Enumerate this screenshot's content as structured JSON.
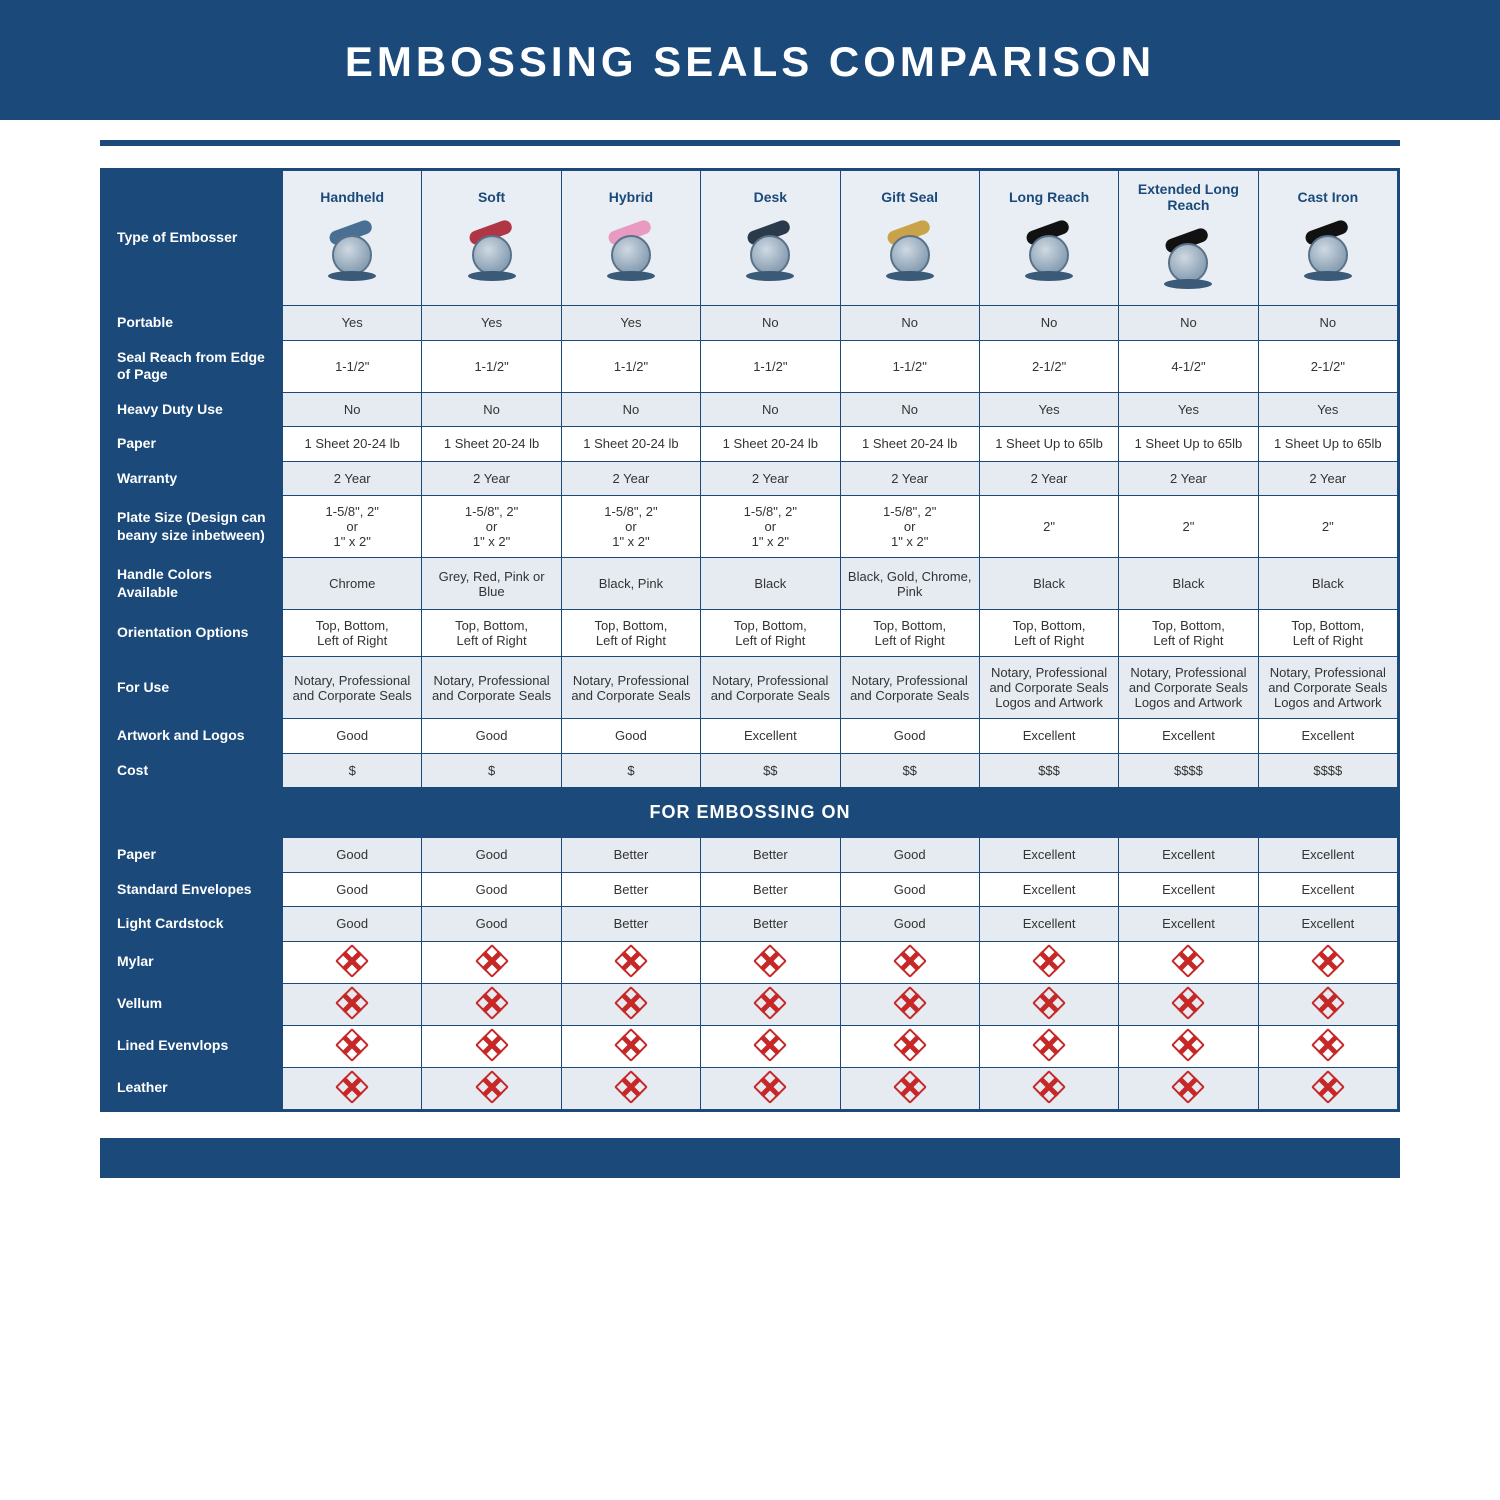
{
  "title": "EMBOSSING SEALS COMPARISON",
  "colors": {
    "brand": "#1b4a7a",
    "band_alt_a": "#e5ebf1",
    "band_alt_b": "#ffffff",
    "head_bg": "#e8eef4",
    "text": "#333333",
    "no_mark": "#c62828"
  },
  "table": {
    "type": "table",
    "header_label": "Type of Embosser",
    "columns": [
      {
        "label": "Handheld",
        "arm_color": "#4a6f94"
      },
      {
        "label": "Soft",
        "arm_color": "#b03646"
      },
      {
        "label": "Hybrid",
        "arm_color": "#e89ac0"
      },
      {
        "label": "Desk",
        "arm_color": "#2b3a4a"
      },
      {
        "label": "Gift Seal",
        "arm_color": "#caa24a"
      },
      {
        "label": "Long Reach",
        "arm_color": "#111111"
      },
      {
        "label": "Extended Long Reach",
        "arm_color": "#111111"
      },
      {
        "label": "Cast Iron",
        "arm_color": "#111111"
      }
    ],
    "rows": [
      {
        "label": "Portable",
        "alt": "a",
        "cells": [
          "Yes",
          "Yes",
          "Yes",
          "No",
          "No",
          "No",
          "No",
          "No"
        ]
      },
      {
        "label": "Seal Reach from Edge of Page",
        "alt": "b",
        "cells": [
          "1-1/2\"",
          "1-1/2\"",
          "1-1/2\"",
          "1-1/2\"",
          "1-1/2\"",
          "2-1/2\"",
          "4-1/2\"",
          "2-1/2\""
        ]
      },
      {
        "label": "Heavy Duty Use",
        "alt": "a",
        "cells": [
          "No",
          "No",
          "No",
          "No",
          "No",
          "Yes",
          "Yes",
          "Yes"
        ]
      },
      {
        "label": "Paper",
        "alt": "b",
        "cells": [
          "1 Sheet 20-24 lb",
          "1 Sheet 20-24 lb",
          "1 Sheet 20-24 lb",
          "1 Sheet 20-24 lb",
          "1 Sheet 20-24 lb",
          "1 Sheet Up to 65lb",
          "1 Sheet Up to 65lb",
          "1 Sheet Up to 65lb"
        ]
      },
      {
        "label": "Warranty",
        "alt": "a",
        "cells": [
          "2 Year",
          "2 Year",
          "2 Year",
          "2 Year",
          "2 Year",
          "2 Year",
          "2 Year",
          "2 Year"
        ]
      },
      {
        "label": "Plate Size (Design can beany size inbetween)",
        "alt": "b",
        "cells": [
          "1-5/8\", 2\"\nor\n1\" x 2\"",
          "1-5/8\", 2\"\nor\n1\" x 2\"",
          "1-5/8\", 2\"\nor\n1\" x 2\"",
          "1-5/8\", 2\"\nor\n1\" x 2\"",
          "1-5/8\", 2\"\nor\n1\" x 2\"",
          "2\"",
          "2\"",
          "2\""
        ]
      },
      {
        "label": "Handle Colors Available",
        "alt": "a",
        "cells": [
          "Chrome",
          "Grey, Red, Pink or Blue",
          "Black, Pink",
          "Black",
          "Black, Gold, Chrome, Pink",
          "Black",
          "Black",
          "Black"
        ]
      },
      {
        "label": "Orientation Options",
        "alt": "b",
        "cells": [
          "Top, Bottom,\nLeft of Right",
          "Top, Bottom,\nLeft of Right",
          "Top, Bottom,\nLeft of Right",
          "Top, Bottom,\nLeft of Right",
          "Top, Bottom,\nLeft of Right",
          "Top, Bottom,\nLeft of Right",
          "Top, Bottom,\nLeft of Right",
          "Top, Bottom,\nLeft of Right"
        ]
      },
      {
        "label": "For Use",
        "alt": "a",
        "cells": [
          "Notary, Professional and Corporate Seals",
          "Notary, Professional and Corporate Seals",
          "Notary, Professional and Corporate Seals",
          "Notary, Professional and Corporate Seals",
          "Notary, Professional and Corporate Seals",
          "Notary, Professional and Corporate Seals Logos and Artwork",
          "Notary, Professional and Corporate Seals Logos and Artwork",
          "Notary, Professional and Corporate Seals Logos and Artwork"
        ]
      },
      {
        "label": "Artwork and Logos",
        "alt": "b",
        "cells": [
          "Good",
          "Good",
          "Good",
          "Excellent",
          "Good",
          "Excellent",
          "Excellent",
          "Excellent"
        ]
      },
      {
        "label": "Cost",
        "alt": "a",
        "cells": [
          "$",
          "$",
          "$",
          "$$",
          "$$",
          "$$$",
          "$$$$",
          "$$$$"
        ]
      }
    ],
    "section_label": "FOR EMBOSSING ON",
    "rows2": [
      {
        "label": "Paper",
        "alt": "a",
        "cells": [
          "Good",
          "Good",
          "Better",
          "Better",
          "Good",
          "Excellent",
          "Excellent",
          "Excellent"
        ]
      },
      {
        "label": "Standard Envelopes",
        "alt": "b",
        "cells": [
          "Good",
          "Good",
          "Better",
          "Better",
          "Good",
          "Excellent",
          "Excellent",
          "Excellent"
        ]
      },
      {
        "label": "Light Cardstock",
        "alt": "a",
        "cells": [
          "Good",
          "Good",
          "Better",
          "Better",
          "Good",
          "Excellent",
          "Excellent",
          "Excellent"
        ]
      },
      {
        "label": "Mylar",
        "alt": "b",
        "cells": [
          "X",
          "X",
          "X",
          "X",
          "X",
          "X",
          "X",
          "X"
        ]
      },
      {
        "label": "Vellum",
        "alt": "a",
        "cells": [
          "X",
          "X",
          "X",
          "X",
          "X",
          "X",
          "X",
          "X"
        ]
      },
      {
        "label": "Lined Evenvlops",
        "alt": "b",
        "cells": [
          "X",
          "X",
          "X",
          "X",
          "X",
          "X",
          "X",
          "X"
        ]
      },
      {
        "label": "Leather",
        "alt": "a",
        "cells": [
          "X",
          "X",
          "X",
          "X",
          "X",
          "X",
          "X",
          "X"
        ]
      }
    ]
  }
}
